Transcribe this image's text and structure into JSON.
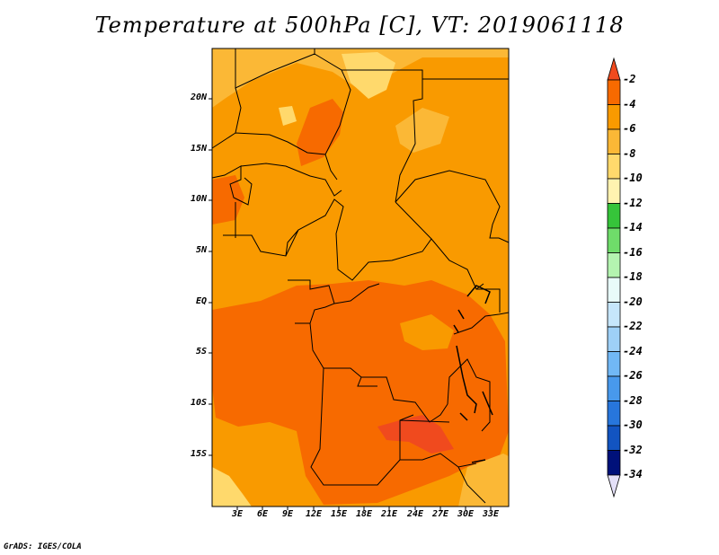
{
  "title": "Temperature at 500hPa [C], VT: 2019061118",
  "footer": "GrADS: IGES/COLA",
  "lat_ticks": [
    "20N",
    "15N",
    "10N",
    "5N",
    "EQ",
    "5S",
    "10S",
    "15S"
  ],
  "lon_ticks": [
    "3E",
    "6E",
    "9E",
    "12E",
    "15E",
    "18E",
    "21E",
    "24E",
    "27E",
    "30E",
    "33E"
  ],
  "colorbar": {
    "labels": [
      "-2",
      "-4",
      "-6",
      "-8",
      "-10",
      "-12",
      "-14",
      "-16",
      "-18",
      "-20",
      "-22",
      "-24",
      "-26",
      "-28",
      "-30",
      "-32",
      "-34"
    ],
    "colors": [
      "#f04a1e",
      "#f76a00",
      "#f99a00",
      "#fbb836",
      "#ffd96c",
      "#fff3b0",
      "#36c43a",
      "#6fdc6a",
      "#b4f4b0",
      "#e8fbf9",
      "#c6e6fb",
      "#9ed0f7",
      "#71b8f5",
      "#4899ec",
      "#2776dc",
      "#1254c1",
      "#00117a"
    ]
  },
  "map": {
    "region": "Central Africa",
    "lon_range": [
      0,
      35
    ],
    "lat_range": [
      -19,
      24
    ],
    "colors": {
      "band_-4_-2": "#f04a1e",
      "band_-6_-4": "#f76a00",
      "band_-8_-6": "#f99a00",
      "band_-10_-8": "#fbb836",
      "band_-12_-10": "#ffd96c",
      "border": "#000000"
    }
  }
}
